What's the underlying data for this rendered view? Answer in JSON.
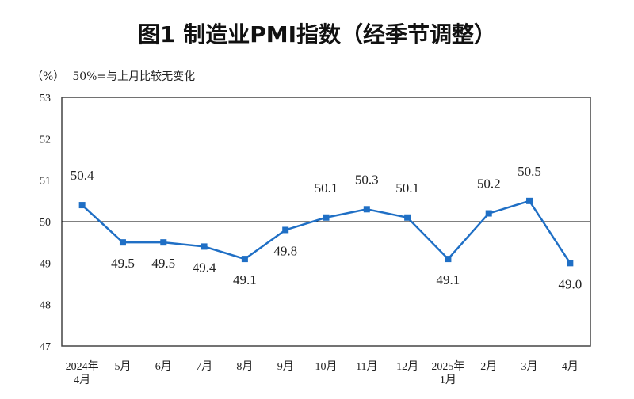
{
  "chart_data": {
    "type": "line",
    "title": "图1  制造业PMI指数（经季节调整）",
    "unit_label": "（%）",
    "note": "50%=与上月比较无变化",
    "categories": [
      [
        "2024年",
        "4月"
      ],
      [
        "5月"
      ],
      [
        "6月"
      ],
      [
        "7月"
      ],
      [
        "8月"
      ],
      [
        "9月"
      ],
      [
        "10月"
      ],
      [
        "11月"
      ],
      [
        "12月"
      ],
      [
        "2025年",
        "1月"
      ],
      [
        "2月"
      ],
      [
        "3月"
      ],
      [
        "4月"
      ]
    ],
    "values": [
      50.4,
      49.5,
      49.5,
      49.4,
      49.1,
      49.8,
      50.1,
      50.3,
      50.1,
      49.1,
      50.2,
      50.5,
      49.0
    ],
    "data_labels": [
      "50.4",
      "49.5",
      "49.5",
      "49.4",
      "49.1",
      "49.8",
      "50.1",
      "50.3",
      "50.1",
      "49.1",
      "50.2",
      "50.5",
      "49.0"
    ],
    "ylim": [
      47,
      53
    ],
    "yticks": [
      47,
      48,
      49,
      50,
      51,
      52,
      53
    ],
    "reference_line": 50,
    "grid": false,
    "colors": {
      "line": "#1f6fc5",
      "reference": "#000000"
    }
  }
}
